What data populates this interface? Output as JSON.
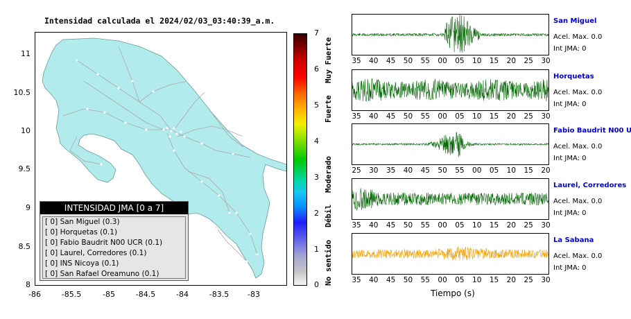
{
  "title": "Intensidad calculada el 2024/02/03_03:40:39_a.m.",
  "map": {
    "lat_ticks": [
      "11",
      "10.5",
      "10",
      "9.5",
      "9",
      "8.5",
      "8"
    ],
    "lon_ticks": [
      "-86",
      "-85.5",
      "-85",
      "-84.5",
      "-84",
      "-83.5",
      "-83"
    ],
    "land_color": "#b2ebeb",
    "road_color": "#a8a8a8"
  },
  "legend": {
    "title": "INTENSIDAD JMA [0 a 7]",
    "items": [
      {
        "value": "[ 0]",
        "label": "San Miguel (0.3)"
      },
      {
        "value": "[ 0]",
        "label": "Horquetas (0.1)"
      },
      {
        "value": "[ 0]",
        "label": "Fabio Baudrit N00 UCR (0.1)"
      },
      {
        "value": "[ 0]",
        "label": "Laurel, Corredores (0.1)"
      },
      {
        "value": "[ 0]",
        "label": "INS Nicoya (0.1)"
      },
      {
        "value": "[ 0]",
        "label": "San Rafael Oreamuno (0.1)"
      }
    ]
  },
  "colorbar": {
    "ticks": [
      "7",
      "6",
      "5",
      "4",
      "3",
      "2",
      "1",
      "0"
    ],
    "categories": [
      "Muy Fuerte",
      "Fuerte",
      "Moderado",
      "Débil",
      "No sentido"
    ]
  },
  "waveforms": [
    {
      "name": "San Miguel",
      "acel": "Acel. Max. 0.0",
      "int": "Int JMA: 0",
      "color": "#006600",
      "ticks": [
        "35",
        "40",
        "45",
        "50",
        "55",
        "00",
        "05",
        "10",
        "15",
        "20",
        "25",
        "30"
      ]
    },
    {
      "name": "Horquetas",
      "acel": "Acel. Max. 0.0",
      "int": "Int JMA: 0",
      "color": "#006600",
      "ticks": [
        "35",
        "40",
        "45",
        "50",
        "55",
        "00",
        "05",
        "10",
        "15",
        "20",
        "25",
        "30"
      ]
    },
    {
      "name": "Fabio Baudrit N00 UCR",
      "acel": "Acel. Max. 0.0",
      "int": "Int JMA: 0",
      "color": "#006600",
      "ticks": [
        "25",
        "30",
        "35",
        "40",
        "45",
        "50",
        "55",
        "00",
        "05",
        "10",
        "15",
        "20"
      ]
    },
    {
      "name": "Laurel, Corredores",
      "acel": "Acel. Max. 0.0",
      "int": "Int JMA: 0",
      "color": "#006600",
      "ticks": [
        "35",
        "40",
        "45",
        "50",
        "55",
        "00",
        "05",
        "10",
        "15",
        "20",
        "25",
        "30"
      ]
    },
    {
      "name": "La Sabana",
      "acel": "Acel. Max. 0.0",
      "int": "Int JMA: 0",
      "color": "#f0a000",
      "ticks": [
        "35",
        "40",
        "45",
        "50",
        "55",
        "00",
        "05",
        "10",
        "15",
        "20",
        "25",
        "30"
      ]
    }
  ],
  "xlabel": "Tiempo (s)",
  "chart_data": {
    "type": "scatter",
    "title": "Intensidad calculada el 2024/02/03_03:40:39_a.m.",
    "xlim": [
      -86,
      -82.5
    ],
    "ylim": [
      8,
      11.3
    ],
    "x_ticks": [
      -86,
      -85.5,
      -85,
      -84.5,
      -84,
      -83.5,
      -83
    ],
    "y_ticks": [
      8,
      8.5,
      9,
      9.5,
      10,
      10.5,
      11
    ],
    "colorbar_range": [
      0,
      7
    ],
    "stations": [
      {
        "name": "San Miguel",
        "intensity": 0.3
      },
      {
        "name": "Horquetas",
        "intensity": 0.1
      },
      {
        "name": "Fabio Baudrit N00 UCR",
        "intensity": 0.1
      },
      {
        "name": "Laurel, Corredores",
        "intensity": 0.1
      },
      {
        "name": "INS Nicoya",
        "intensity": 0.1
      },
      {
        "name": "San Rafael Oreamuno",
        "intensity": 0.1
      }
    ]
  }
}
